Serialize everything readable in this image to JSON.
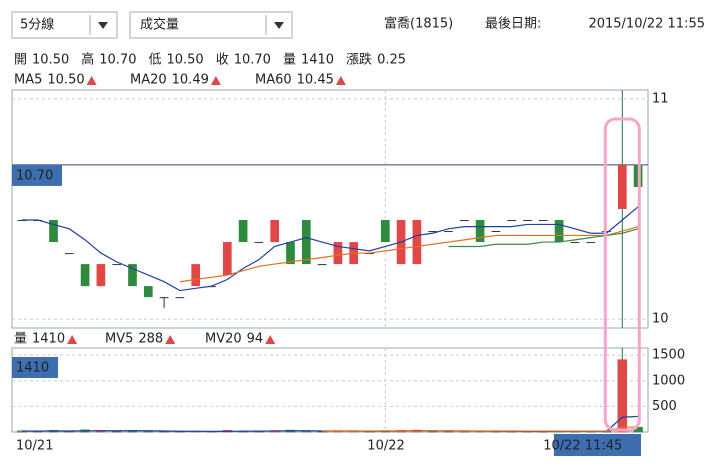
{
  "toolbar": {
    "period": "5分線",
    "indicator": "成交量",
    "stock": "富喬(1815)",
    "last_date_label": "最後日期:",
    "last_date": "2015/10/22 11:55"
  },
  "quote": {
    "items": [
      [
        "開",
        "10.50"
      ],
      [
        "高",
        "10.70"
      ],
      [
        "低",
        "10.50"
      ],
      [
        "收",
        "10.70"
      ],
      [
        "量",
        "1410"
      ],
      [
        "漲跌",
        "0.25"
      ]
    ]
  },
  "readout": {
    "ma": [
      "10.50",
      "10.49",
      "10.45"
    ],
    "volume_label": "量",
    "volume": "1410",
    "mv": [
      "288",
      "94"
    ],
    "cross_price": "10.70",
    "cross_volume": "1410"
  },
  "chart_data": [
    {
      "type": "candlestick",
      "up_color": "#e04848",
      "down_color": "#2e8b3e",
      "flat_color": "#333333",
      "open": [
        10.45,
        10.45,
        10.45,
        10.3,
        10.25,
        10.15,
        10.25,
        10.25,
        10.15,
        10.1,
        10.1,
        10.15,
        10.15,
        10.2,
        10.45,
        10.35,
        10.35,
        10.35,
        10.45,
        10.25,
        10.25,
        10.25,
        10.3,
        10.45,
        10.25,
        10.25,
        10.4,
        10.4,
        10.45,
        10.45,
        10.4,
        10.45,
        10.45,
        10.45,
        10.45,
        10.35,
        10.35,
        10.4,
        10.5,
        10.7
      ],
      "high": [
        10.45,
        10.45,
        10.45,
        10.3,
        10.25,
        10.25,
        10.25,
        10.25,
        10.15,
        10.1,
        10.1,
        10.25,
        10.15,
        10.35,
        10.45,
        10.35,
        10.45,
        10.35,
        10.45,
        10.25,
        10.35,
        10.35,
        10.3,
        10.45,
        10.45,
        10.45,
        10.4,
        10.4,
        10.45,
        10.45,
        10.4,
        10.45,
        10.45,
        10.45,
        10.45,
        10.35,
        10.35,
        10.4,
        10.7,
        10.7
      ],
      "low": [
        10.45,
        10.45,
        10.35,
        10.3,
        10.15,
        10.15,
        10.25,
        10.15,
        10.1,
        10.05,
        10.1,
        10.15,
        10.15,
        10.2,
        10.35,
        10.35,
        10.35,
        10.25,
        10.25,
        10.25,
        10.25,
        10.25,
        10.3,
        10.35,
        10.25,
        10.25,
        10.4,
        10.4,
        10.45,
        10.35,
        10.4,
        10.45,
        10.45,
        10.45,
        10.35,
        10.35,
        10.35,
        10.4,
        10.5,
        10.6
      ],
      "close": [
        10.45,
        10.45,
        10.35,
        10.3,
        10.15,
        10.25,
        10.25,
        10.15,
        10.1,
        10.1,
        10.1,
        10.25,
        10.15,
        10.35,
        10.35,
        10.35,
        10.45,
        10.25,
        10.25,
        10.25,
        10.35,
        10.35,
        10.3,
        10.35,
        10.45,
        10.45,
        10.4,
        10.4,
        10.45,
        10.35,
        10.4,
        10.45,
        10.45,
        10.45,
        10.35,
        10.35,
        10.35,
        10.4,
        10.7,
        10.6
      ],
      "series": [
        {
          "name": "MA5",
          "color": "#2040a0",
          "values": [
            10.45,
            10.45,
            10.43,
            10.41,
            10.36,
            10.3,
            10.26,
            10.23,
            10.2,
            10.17,
            10.13,
            10.14,
            10.15,
            10.18,
            10.23,
            10.27,
            10.33,
            10.35,
            10.37,
            10.35,
            10.33,
            10.32,
            10.31,
            10.33,
            10.35,
            10.38,
            10.39,
            10.41,
            10.42,
            10.42,
            10.42,
            10.42,
            10.43,
            10.43,
            10.43,
            10.41,
            10.39,
            10.39,
            10.45,
            10.51
          ]
        },
        {
          "name": "MA20",
          "color": "#e07020",
          "values": [
            null,
            null,
            null,
            null,
            null,
            null,
            null,
            null,
            null,
            null,
            10.17,
            10.18,
            10.19,
            10.2,
            10.22,
            10.24,
            10.25,
            10.26,
            10.27,
            10.28,
            10.29,
            10.3,
            10.3,
            10.31,
            10.32,
            10.33,
            10.34,
            10.35,
            10.36,
            10.37,
            10.38,
            10.38,
            10.38,
            10.38,
            10.38,
            10.38,
            10.38,
            10.38,
            10.4,
            10.42
          ]
        },
        {
          "name": "MA60",
          "color": "#3a8a4a",
          "values": [
            null,
            null,
            null,
            null,
            null,
            null,
            null,
            null,
            null,
            null,
            null,
            null,
            null,
            null,
            null,
            null,
            null,
            null,
            null,
            null,
            null,
            null,
            null,
            null,
            null,
            null,
            null,
            10.33,
            10.33,
            10.33,
            10.34,
            10.34,
            10.34,
            10.35,
            10.35,
            10.36,
            10.37,
            10.38,
            10.39,
            10.41
          ]
        }
      ],
      "ylim": [
        9.96,
        11.04
      ],
      "yticks": [
        10,
        11
      ],
      "grid": true
    },
    {
      "type": "bar",
      "categories": [
        "10/21",
        null,
        null,
        null,
        null,
        null,
        null,
        null,
        null,
        null,
        null,
        null,
        null,
        null,
        null,
        null,
        null,
        null,
        null,
        null,
        null,
        null,
        null,
        "10/22",
        null,
        null,
        null,
        null,
        null,
        null,
        null,
        null,
        null,
        null,
        null,
        null,
        null,
        null,
        "10/22 11:45",
        null
      ],
      "values": [
        20,
        10,
        30,
        15,
        40,
        25,
        10,
        30,
        20,
        10,
        5,
        15,
        10,
        30,
        20,
        15,
        25,
        35,
        20,
        10,
        15,
        20,
        10,
        25,
        30,
        35,
        15,
        10,
        20,
        10,
        15,
        10,
        5,
        10,
        20,
        15,
        10,
        20,
        1410,
        90
      ],
      "series": [
        {
          "name": "MV5",
          "color": "#2040a0",
          "values": [
            20,
            18,
            22,
            20,
            23,
            24,
            24,
            24,
            25,
            19,
            15,
            14,
            12,
            14,
            16,
            18,
            21,
            25,
            25,
            21,
            21,
            21,
            16,
            16,
            20,
            24,
            23,
            23,
            20,
            18,
            14,
            13,
            12,
            10,
            12,
            12,
            12,
            15,
            288,
            305
          ]
        },
        {
          "name": "MV20",
          "color": "#e07020",
          "values": [
            null,
            null,
            null,
            null,
            null,
            null,
            null,
            null,
            null,
            null,
            null,
            null,
            null,
            null,
            null,
            null,
            null,
            null,
            null,
            20,
            20,
            20,
            20,
            20,
            20,
            21,
            21,
            21,
            20,
            20,
            19,
            19,
            18,
            18,
            17,
            17,
            16,
            16,
            94,
            97
          ]
        }
      ],
      "ylim": [
        0,
        1640
      ],
      "yticks": [
        500,
        1000,
        1500
      ],
      "grid": true
    }
  ]
}
